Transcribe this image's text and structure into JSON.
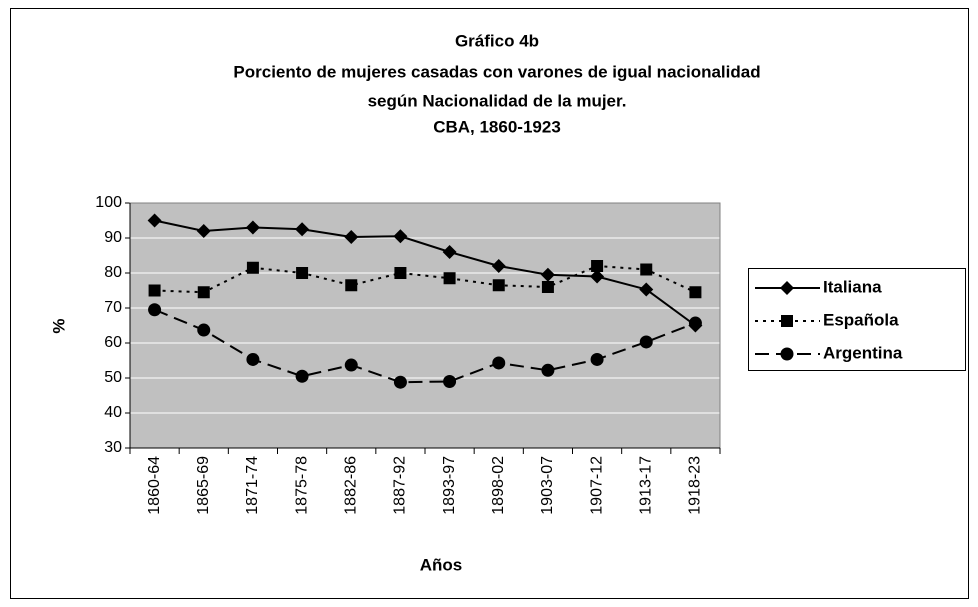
{
  "chart_data": {
    "type": "line",
    "title": [
      "Gráfico 4b",
      "Porciento de mujeres casadas con varones de igual nacionalidad",
      "según Nacionalidad de la mujer.",
      "CBA, 1860-1923"
    ],
    "xlabel": "Años",
    "ylabel": "%",
    "categories": [
      "1860-64",
      "1865-69",
      "1871-74",
      "1875-78",
      "1882-86",
      "1887-92",
      "1893-97",
      "1898-02",
      "1903-07",
      "1907-12",
      "1913-17",
      "1918-23"
    ],
    "series": [
      {
        "name": "Italiana",
        "color": "#000000",
        "marker": "diamond",
        "values": [
          95,
          92,
          93,
          92.5,
          90.3,
          90.5,
          86,
          82,
          79.5,
          79,
          75.3,
          65
        ]
      },
      {
        "name": "Española",
        "color": "#000000",
        "marker": "square",
        "values": [
          75,
          74.5,
          81.5,
          80,
          76.5,
          80,
          78.5,
          76.5,
          76,
          82,
          81,
          74.5
        ]
      },
      {
        "name": "Argentina",
        "color": "#000000",
        "marker": "circle",
        "values": [
          69.5,
          63.7,
          55.3,
          50.5,
          53.7,
          48.8,
          49,
          54.3,
          52.2,
          55.3,
          60.3,
          65.7
        ]
      }
    ],
    "ylim": [
      30,
      100
    ],
    "yticks": [
      30,
      40,
      50,
      60,
      70,
      80,
      90,
      100
    ],
    "grid": true,
    "legend": "right"
  }
}
